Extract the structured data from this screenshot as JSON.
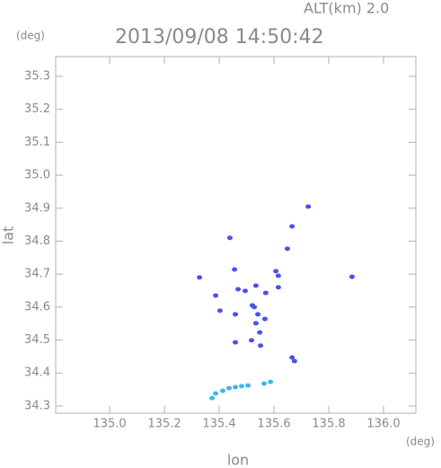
{
  "chart_data": {
    "type": "scatter",
    "title": "2013/09/08 14:50:42",
    "subtitle": "ALT(km) 2.0",
    "y_unit": "(deg)",
    "x_unit": "(deg)",
    "x_label": "lon",
    "y_label": "lat",
    "xlim": [
      134.803,
      136.118
    ],
    "ylim": [
      34.278,
      35.36
    ],
    "xticks": [
      {
        "value": 135,
        "label": "135.0"
      },
      135.2,
      135.4,
      135.6,
      135.8,
      {
        "value": 136,
        "label": "136.0"
      }
    ],
    "yticks": [
      35.3,
      35.2,
      35.1,
      {
        "value": 35,
        "label": "35.0"
      },
      34.9,
      34.8,
      34.7,
      34.6,
      34.5,
      34.4,
      34.3
    ],
    "series": [
      {
        "color": "#4a52e8",
        "x": [
          135.725,
          135.666,
          135.649,
          135.439,
          135.456,
          135.328,
          135.607,
          135.616,
          135.387,
          135.469,
          135.495,
          135.534,
          135.57,
          135.521,
          135.528,
          135.541,
          135.567,
          135.459,
          135.534,
          135.548,
          135.518,
          135.551,
          135.459,
          135.403,
          135.666,
          135.675,
          135.885,
          135.616
        ],
        "values": [
          34.905,
          34.845,
          34.777,
          34.81,
          34.714,
          34.69,
          34.709,
          34.695,
          34.635,
          34.654,
          34.649,
          34.665,
          34.643,
          34.605,
          34.6,
          34.578,
          34.564,
          34.578,
          34.551,
          34.523,
          34.499,
          34.483,
          34.493,
          34.589,
          34.447,
          34.436,
          34.692,
          34.66
        ]
      },
      {
        "color": "#3fb6ee",
        "x": [
          135.374,
          135.387,
          135.413,
          135.436,
          135.459,
          135.482,
          135.505,
          135.564,
          135.587
        ],
        "values": [
          34.324,
          34.338,
          34.346,
          34.354,
          34.357,
          34.36,
          34.362,
          34.368,
          34.373
        ]
      }
    ]
  }
}
